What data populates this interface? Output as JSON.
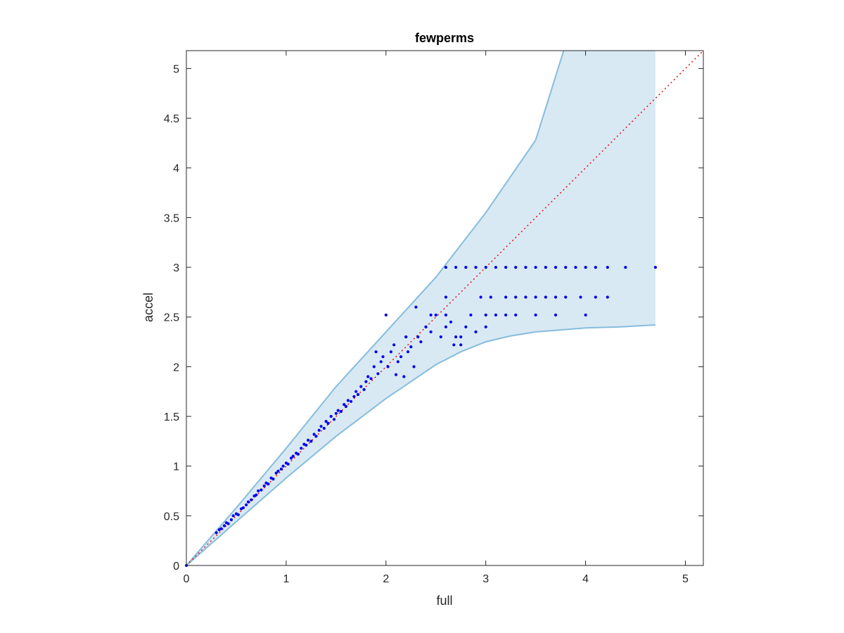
{
  "chart_data": {
    "type": "scatter",
    "title": "fewperms",
    "xlabel": "full",
    "ylabel": "accel",
    "xlim": [
      0,
      5.18
    ],
    "ylim": [
      0,
      5.18
    ],
    "xticks": [
      0,
      1,
      2,
      3,
      4,
      5
    ],
    "yticks": [
      0,
      0.5,
      1,
      1.5,
      2,
      2.5,
      3,
      3.5,
      4,
      4.5,
      5
    ],
    "xtick_labels": [
      "0",
      "1",
      "2",
      "3",
      "4",
      "5"
    ],
    "ytick_labels": [
      "0",
      "0.5",
      "1",
      "1.5",
      "2",
      "2.5",
      "3",
      "3.5",
      "4",
      "4.5",
      "5"
    ],
    "grid": false,
    "colors": {
      "points": "#0000ee",
      "band_fill": "#d8e9f4",
      "band_edge": "#86bcdc",
      "reference_line": "#e31a1c",
      "axis": "#262626"
    },
    "reference_line": {
      "style": "dotted",
      "from": [
        0,
        0
      ],
      "to": [
        5.18,
        5.18
      ]
    },
    "band": {
      "upper": [
        [
          0,
          0
        ],
        [
          0.5,
          0.58
        ],
        [
          1,
          1.18
        ],
        [
          1.5,
          1.8
        ],
        [
          2,
          2.35
        ],
        [
          2.5,
          2.9
        ],
        [
          3,
          3.55
        ],
        [
          3.5,
          4.28
        ],
        [
          3.78,
          5.18
        ],
        [
          4.7,
          5.18
        ]
      ],
      "lower": [
        [
          0,
          0
        ],
        [
          0.5,
          0.44
        ],
        [
          1,
          0.88
        ],
        [
          1.5,
          1.3
        ],
        [
          2,
          1.68
        ],
        [
          2.25,
          1.85
        ],
        [
          2.5,
          2.02
        ],
        [
          2.75,
          2.15
        ],
        [
          3,
          2.25
        ],
        [
          3.25,
          2.31
        ],
        [
          3.5,
          2.35
        ],
        [
          3.75,
          2.37
        ],
        [
          4,
          2.39
        ],
        [
          4.35,
          2.4
        ],
        [
          4.7,
          2.42
        ]
      ]
    },
    "series": [
      {
        "points": [
          [
            0.3,
            0.33
          ],
          [
            0.33,
            0.36
          ],
          [
            0.35,
            0.37
          ],
          [
            0.38,
            0.4
          ],
          [
            0.4,
            0.43
          ],
          [
            0.42,
            0.42
          ],
          [
            0.45,
            0.46
          ],
          [
            0.47,
            0.5
          ],
          [
            0.5,
            0.52
          ],
          [
            0.52,
            0.51
          ],
          [
            0.55,
            0.57
          ],
          [
            0.57,
            0.58
          ],
          [
            0.6,
            0.61
          ],
          [
            0.62,
            0.64
          ],
          [
            0.65,
            0.66
          ],
          [
            0.68,
            0.7
          ],
          [
            0.7,
            0.71
          ],
          [
            0.72,
            0.75
          ],
          [
            0.75,
            0.76
          ],
          [
            0.78,
            0.8
          ],
          [
            0.8,
            0.83
          ],
          [
            0.82,
            0.82
          ],
          [
            0.85,
            0.88
          ],
          [
            0.87,
            0.87
          ],
          [
            0.9,
            0.93
          ],
          [
            0.92,
            0.95
          ],
          [
            0.95,
            0.97
          ],
          [
            0.97,
            1.0
          ],
          [
            1.0,
            1.03
          ],
          [
            1.02,
            1.02
          ],
          [
            1.05,
            1.08
          ],
          [
            1.07,
            1.1
          ],
          [
            1.1,
            1.13
          ],
          [
            1.12,
            1.12
          ],
          [
            1.15,
            1.18
          ],
          [
            1.18,
            1.22
          ],
          [
            1.2,
            1.21
          ],
          [
            1.22,
            1.26
          ],
          [
            1.25,
            1.25
          ],
          [
            1.28,
            1.32
          ],
          [
            1.3,
            1.3
          ],
          [
            1.33,
            1.36
          ],
          [
            1.35,
            1.4
          ],
          [
            1.38,
            1.38
          ],
          [
            1.4,
            1.45
          ],
          [
            1.42,
            1.43
          ],
          [
            1.45,
            1.5
          ],
          [
            1.48,
            1.47
          ],
          [
            1.5,
            1.53
          ],
          [
            1.52,
            1.56
          ],
          [
            1.55,
            1.55
          ],
          [
            1.58,
            1.62
          ],
          [
            1.6,
            1.6
          ],
          [
            1.62,
            1.66
          ],
          [
            1.65,
            1.65
          ],
          [
            1.68,
            1.7
          ],
          [
            1.7,
            1.75
          ],
          [
            1.72,
            1.72
          ],
          [
            1.75,
            1.8
          ],
          [
            1.78,
            1.77
          ],
          [
            1.8,
            1.85
          ],
          [
            1.82,
            1.9
          ],
          [
            1.85,
            1.88
          ],
          [
            1.88,
            2.0
          ],
          [
            1.9,
            2.15
          ],
          [
            1.92,
            1.93
          ],
          [
            1.95,
            2.05
          ],
          [
            1.97,
            2.1
          ],
          [
            2.0,
            2.52
          ],
          [
            2.02,
            2.0
          ],
          [
            2.05,
            2.15
          ],
          [
            2.08,
            2.22
          ],
          [
            2.1,
            1.92
          ],
          [
            2.12,
            2.05
          ],
          [
            2.15,
            2.1
          ],
          [
            2.18,
            1.9
          ],
          [
            2.2,
            2.3
          ],
          [
            2.22,
            2.15
          ],
          [
            2.25,
            2.2
          ],
          [
            2.28,
            2.0
          ],
          [
            2.3,
            2.6
          ],
          [
            2.32,
            2.3
          ],
          [
            2.35,
            2.25
          ],
          [
            2.4,
            2.4
          ],
          [
            2.45,
            2.35
          ],
          [
            2.5,
            2.52
          ],
          [
            2.55,
            2.3
          ],
          [
            2.6,
            2.7
          ],
          [
            2.65,
            2.45
          ],
          [
            2.68,
            2.22
          ],
          [
            2.7,
            2.3
          ],
          [
            2.75,
            2.22
          ],
          [
            2.8,
            2.4
          ],
          [
            2.85,
            2.52
          ],
          [
            2.9,
            2.35
          ],
          [
            2.95,
            2.7
          ],
          [
            3.0,
            2.52
          ],
          [
            3.05,
            2.7
          ],
          [
            3.1,
            2.52
          ],
          [
            3.2,
            2.7
          ],
          [
            2.6,
            3.0
          ],
          [
            2.7,
            3.0
          ],
          [
            2.8,
            3.0
          ],
          [
            2.9,
            3.0
          ],
          [
            3.0,
            3.0
          ],
          [
            3.1,
            3.0
          ],
          [
            3.2,
            3.0
          ],
          [
            3.3,
            3.0
          ],
          [
            3.4,
            3.0
          ],
          [
            3.5,
            3.0
          ],
          [
            3.6,
            3.0
          ],
          [
            3.7,
            3.0
          ],
          [
            3.8,
            3.0
          ],
          [
            3.9,
            3.0
          ],
          [
            4.0,
            3.0
          ],
          [
            4.1,
            3.0
          ],
          [
            4.22,
            3.0
          ],
          [
            4.4,
            3.0
          ],
          [
            4.7,
            3.0
          ],
          [
            3.3,
            2.7
          ],
          [
            3.4,
            2.7
          ],
          [
            3.5,
            2.7
          ],
          [
            3.6,
            2.7
          ],
          [
            3.7,
            2.7
          ],
          [
            3.8,
            2.7
          ],
          [
            3.95,
            2.7
          ],
          [
            4.1,
            2.7
          ],
          [
            4.22,
            2.7
          ],
          [
            4.0,
            2.52
          ],
          [
            3.3,
            2.52
          ],
          [
            3.5,
            2.52
          ],
          [
            3.7,
            2.52
          ],
          [
            2.4,
            2.4
          ],
          [
            3.0,
            2.4
          ],
          [
            2.6,
            2.4
          ],
          [
            2.75,
            2.3
          ],
          [
            2.2,
            2.3
          ],
          [
            2.6,
            2.52
          ],
          [
            2.45,
            2.52
          ],
          [
            3.2,
            2.52
          ]
        ]
      }
    ]
  }
}
